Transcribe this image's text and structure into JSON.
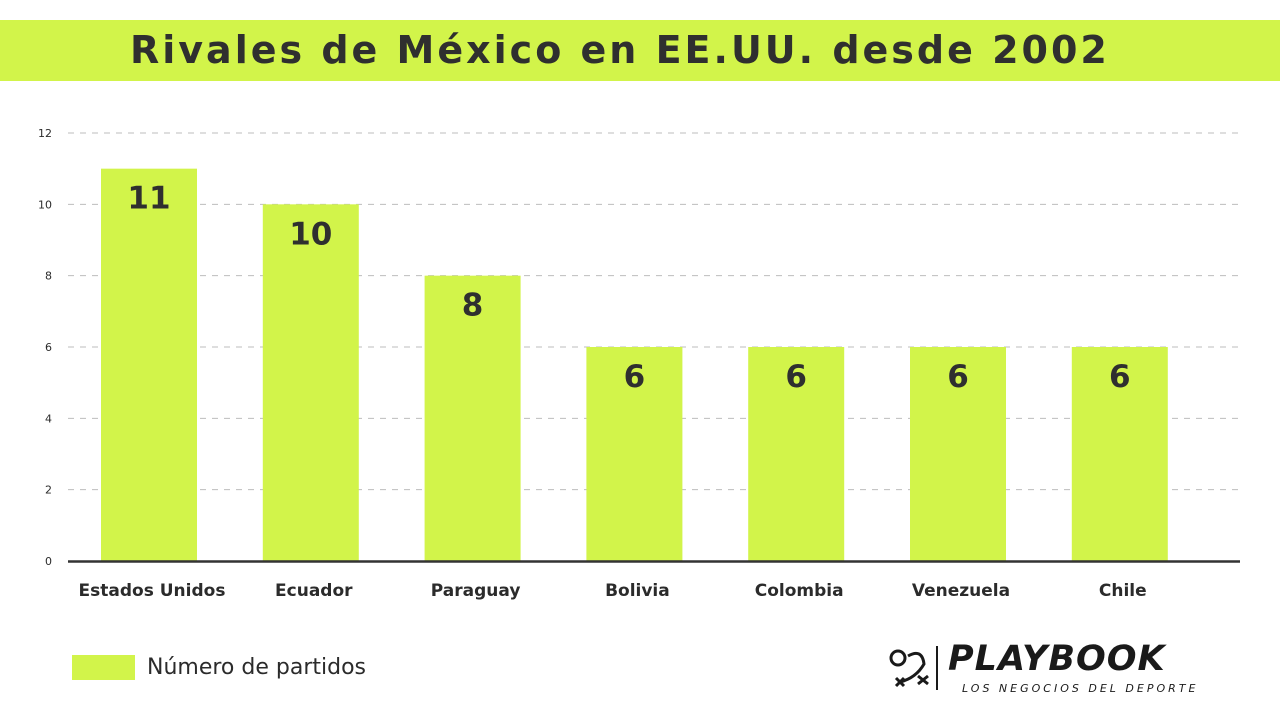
{
  "title": "Rivales de México en EE.UU. desde 2002",
  "legend": {
    "label": "Número de partidos",
    "color": "#d2f44a"
  },
  "brand": {
    "name": "PLAYBOOK",
    "tagline": "LOS NEGOCIOS DEL DEPORTE",
    "icon": "playbook-logo-mark"
  },
  "colors": {
    "accent": "#d2f44a",
    "text": "#2b2b2b",
    "grid": "#bdbdbd",
    "axis": "#333333"
  },
  "chart_data": {
    "type": "bar",
    "title": "Rivales de México en EE.UU. desde 2002",
    "xlabel": "",
    "ylabel": "",
    "categories": [
      "Estados Unidos",
      "Ecuador",
      "Paraguay",
      "Bolivia",
      "Colombia",
      "Venezuela",
      "Chile"
    ],
    "series": [
      {
        "name": "Número de partidos",
        "values": [
          11,
          10,
          8,
          6,
          6,
          6,
          6
        ]
      }
    ],
    "data_labels": [
      "11",
      "10",
      "8",
      "6",
      "6",
      "6",
      "6"
    ],
    "ylim": [
      0,
      12
    ],
    "yticks": [
      "0",
      "2",
      "4",
      "6",
      "8",
      "10",
      "12"
    ],
    "grid": true,
    "legend_position": "bottom-left"
  }
}
